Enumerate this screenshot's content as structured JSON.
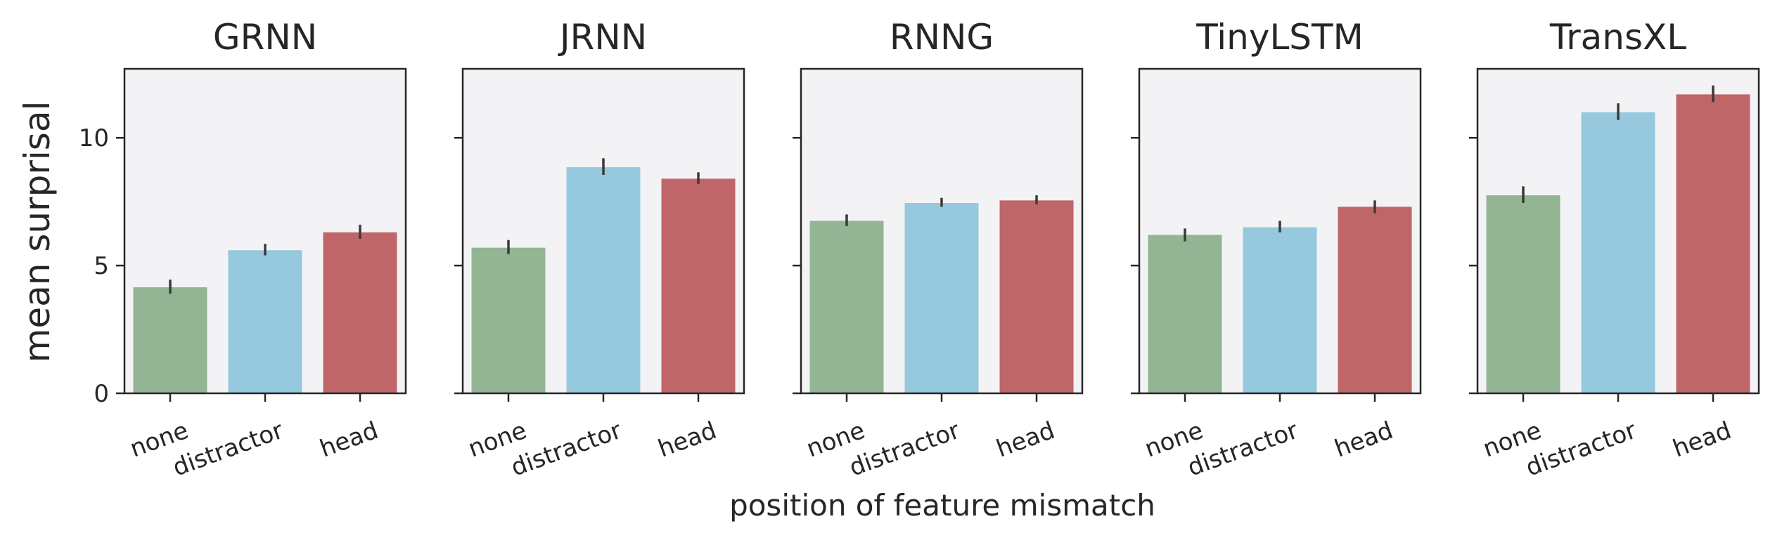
{
  "chart_data": {
    "type": "bar",
    "xlabel": "position of feature mismatch",
    "ylabel": "mean surprisal",
    "ylim": [
      0,
      12.7
    ],
    "yticks": [
      0,
      5,
      10
    ],
    "grid": false,
    "categories": [
      "none",
      "distractor",
      "head"
    ],
    "colors": {
      "none": "#93b593",
      "distractor": "#96c9de",
      "head": "#bf6668"
    },
    "panel_background": "#f3f3f6",
    "panels": [
      {
        "title": "GRNN",
        "values": [
          4.15,
          5.6,
          6.3
        ],
        "err_low": [
          3.9,
          5.4,
          6.05
        ],
        "err_high": [
          4.45,
          5.85,
          6.6
        ]
      },
      {
        "title": "JRNN",
        "values": [
          5.7,
          8.85,
          8.4
        ],
        "err_low": [
          5.45,
          8.55,
          8.2
        ],
        "err_high": [
          6.0,
          9.2,
          8.65
        ]
      },
      {
        "title": "RNNG",
        "values": [
          6.75,
          7.45,
          7.55
        ],
        "err_low": [
          6.55,
          7.3,
          7.4
        ],
        "err_high": [
          7.0,
          7.65,
          7.75
        ]
      },
      {
        "title": "TinyLSTM",
        "values": [
          6.2,
          6.5,
          7.3
        ],
        "err_low": [
          5.95,
          6.3,
          7.05
        ],
        "err_high": [
          6.45,
          6.75,
          7.55
        ]
      },
      {
        "title": "TransXL",
        "values": [
          7.75,
          11.0,
          11.7
        ],
        "err_low": [
          7.45,
          10.7,
          11.4
        ],
        "err_high": [
          8.1,
          11.35,
          12.05
        ]
      }
    ]
  }
}
